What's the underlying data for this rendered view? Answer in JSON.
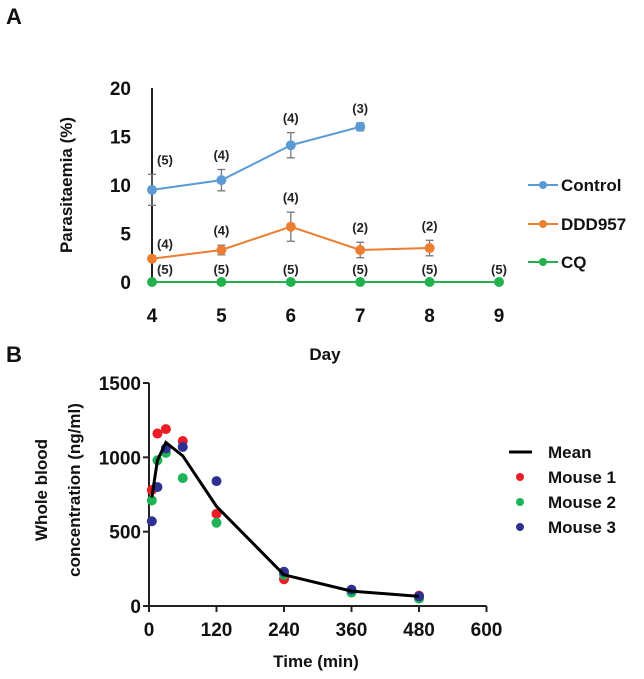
{
  "chart_data": [
    {
      "panel": "A",
      "type": "line",
      "xlabel": "Day",
      "ylabel": "Parasitaemia (%)",
      "xlim": [
        4,
        9
      ],
      "ylim": [
        0,
        20
      ],
      "xticks": [
        "4",
        "5",
        "6",
        "7",
        "8",
        "9"
      ],
      "yticks": [
        "0",
        "5",
        "10",
        "15",
        "20"
      ],
      "legend_position": "right",
      "series": [
        {
          "name": "Control",
          "color": "#5b9bd5",
          "x": [
            4,
            5,
            6,
            7
          ],
          "values": [
            9.5,
            10.5,
            14.1,
            16.0
          ],
          "error": [
            1.6,
            1.1,
            1.3,
            0.4
          ],
          "n_labels": [
            "(5)",
            "(4)",
            "(4)",
            "(3)"
          ]
        },
        {
          "name": "DDD957",
          "color": "#ed7d31",
          "x": [
            4,
            5,
            6,
            7,
            8
          ],
          "values": [
            2.4,
            3.3,
            5.7,
            3.3,
            3.5
          ],
          "error": [
            0,
            0.5,
            1.5,
            0.8,
            0.8
          ],
          "n_labels": [
            "(4)",
            "(4)",
            "(4)",
            "(2)",
            "(2)"
          ]
        },
        {
          "name": "CQ",
          "color": "#22b14c",
          "x": [
            4,
            5,
            6,
            7,
            8,
            9
          ],
          "values": [
            0,
            0,
            0,
            0,
            0,
            0
          ],
          "error": [
            0,
            0,
            0,
            0,
            0,
            0
          ],
          "n_labels": [
            "(5)",
            "(5)",
            "(5)",
            "(5)",
            "(5)",
            "(5)"
          ]
        }
      ]
    },
    {
      "panel": "B",
      "type": "line",
      "xlabel": "Time (min)",
      "ylabel_lines": [
        "Whole blood",
        "concentration (ng/ml)"
      ],
      "xlim": [
        0,
        600
      ],
      "ylim": [
        0,
        1500
      ],
      "xticks": [
        "0",
        "120",
        "240",
        "360",
        "480",
        "600"
      ],
      "yticks": [
        "0",
        "500",
        "1000",
        "1500"
      ],
      "legend_position": "right",
      "x": [
        5,
        15,
        30,
        60,
        120,
        240,
        360,
        480
      ],
      "series": [
        {
          "name": "Mean",
          "color": "#000000",
          "kind": "line",
          "values": [
            730,
            980,
            1100,
            1010,
            670,
            210,
            100,
            65
          ]
        },
        {
          "name": "Mouse 1",
          "color": "#ee1c25",
          "kind": "scatter",
          "values": [
            780,
            1160,
            1190,
            1110,
            620,
            180,
            100,
            70
          ]
        },
        {
          "name": "Mouse 2",
          "color": "#1db356",
          "kind": "scatter",
          "values": [
            710,
            980,
            1030,
            860,
            560,
            210,
            90,
            50
          ]
        },
        {
          "name": "Mouse 3",
          "color": "#2e3192",
          "kind": "scatter",
          "values": [
            570,
            800,
            1060,
            1070,
            840,
            230,
            110,
            65
          ]
        }
      ]
    }
  ],
  "panel_labels": [
    "A",
    "B"
  ]
}
